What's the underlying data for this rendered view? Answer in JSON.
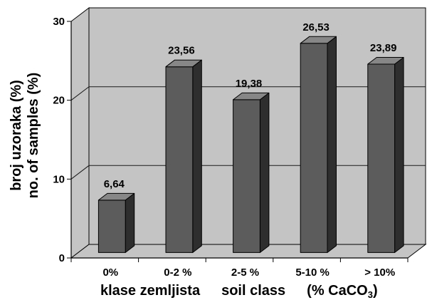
{
  "chart_data": {
    "type": "bar",
    "3d": true,
    "categories": [
      "0%",
      "0-2 %",
      "2-5 %",
      "5-10 %",
      "> 10%"
    ],
    "values": [
      6.64,
      23.56,
      19.38,
      26.53,
      23.89
    ],
    "data_labels": [
      "6,64",
      "23,56",
      "19,38",
      "26,53",
      "23,89"
    ],
    "yticks": [
      0,
      10,
      20,
      30
    ],
    "ylim": [
      0,
      30
    ],
    "ylabel": [
      "broj uzoraka (%)",
      "no. of samples (%)"
    ],
    "xlabel": {
      "parts": [
        "klase zemljista",
        "soil class",
        "(% CaCO"
      ],
      "subscript": "3",
      "tail": ")"
    },
    "grid": true,
    "colors": {
      "wall": "#c4c4c4",
      "floor": "#c4c4c4",
      "bar_front": "#5c5c5c",
      "bar_top": "#878787",
      "bar_side": "#2e2e2e",
      "grid": "#1a1a1a",
      "line": "#000000"
    }
  }
}
